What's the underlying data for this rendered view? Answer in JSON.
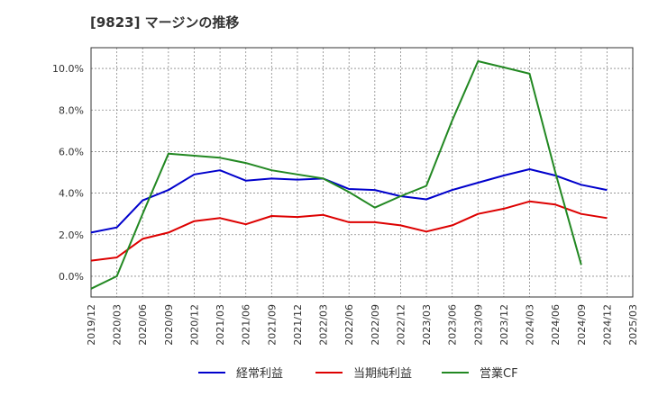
{
  "title": "[9823]  マージンの推移",
  "chart_data": {
    "type": "line",
    "x": [
      "2019/12",
      "2020/03",
      "2020/06",
      "2020/09",
      "2020/12",
      "2021/03",
      "2021/06",
      "2021/09",
      "2021/12",
      "2022/03",
      "2022/06",
      "2022/09",
      "2022/12",
      "2023/03",
      "2023/06",
      "2023/09",
      "2023/12",
      "2024/03",
      "2024/06",
      "2024/09",
      "2024/12",
      "2025/03"
    ],
    "ylim": [
      -1.0,
      11.0
    ],
    "yticks": [
      0,
      2,
      4,
      6,
      8,
      10
    ],
    "ytick_labels": [
      "0.0%",
      "2.0%",
      "4.0%",
      "6.0%",
      "8.0%",
      "10.0%"
    ],
    "grid": true,
    "legend_position": "bottom",
    "series": [
      {
        "name": "経常利益",
        "color": "#0000cc",
        "values": [
          2.1,
          2.35,
          3.65,
          4.15,
          4.9,
          5.1,
          4.6,
          4.7,
          4.65,
          4.7,
          4.2,
          4.15,
          3.85,
          3.7,
          4.15,
          4.5,
          4.85,
          5.15,
          4.85,
          4.4,
          4.15,
          null
        ]
      },
      {
        "name": "当期純利益",
        "color": "#dd0000",
        "values": [
          0.75,
          0.9,
          1.8,
          2.1,
          2.65,
          2.8,
          2.5,
          2.9,
          2.85,
          2.95,
          2.6,
          2.6,
          2.45,
          2.15,
          2.45,
          3.0,
          3.25,
          3.6,
          3.45,
          3.0,
          2.8,
          null
        ]
      },
      {
        "name": "営業CF",
        "color": "#228822",
        "values": [
          -0.6,
          0.0,
          3.0,
          5.9,
          5.8,
          5.7,
          5.45,
          5.1,
          4.9,
          4.7,
          4.05,
          3.3,
          3.85,
          4.35,
          7.5,
          10.35,
          10.05,
          9.75,
          5.0,
          0.55,
          null,
          null
        ]
      }
    ]
  }
}
